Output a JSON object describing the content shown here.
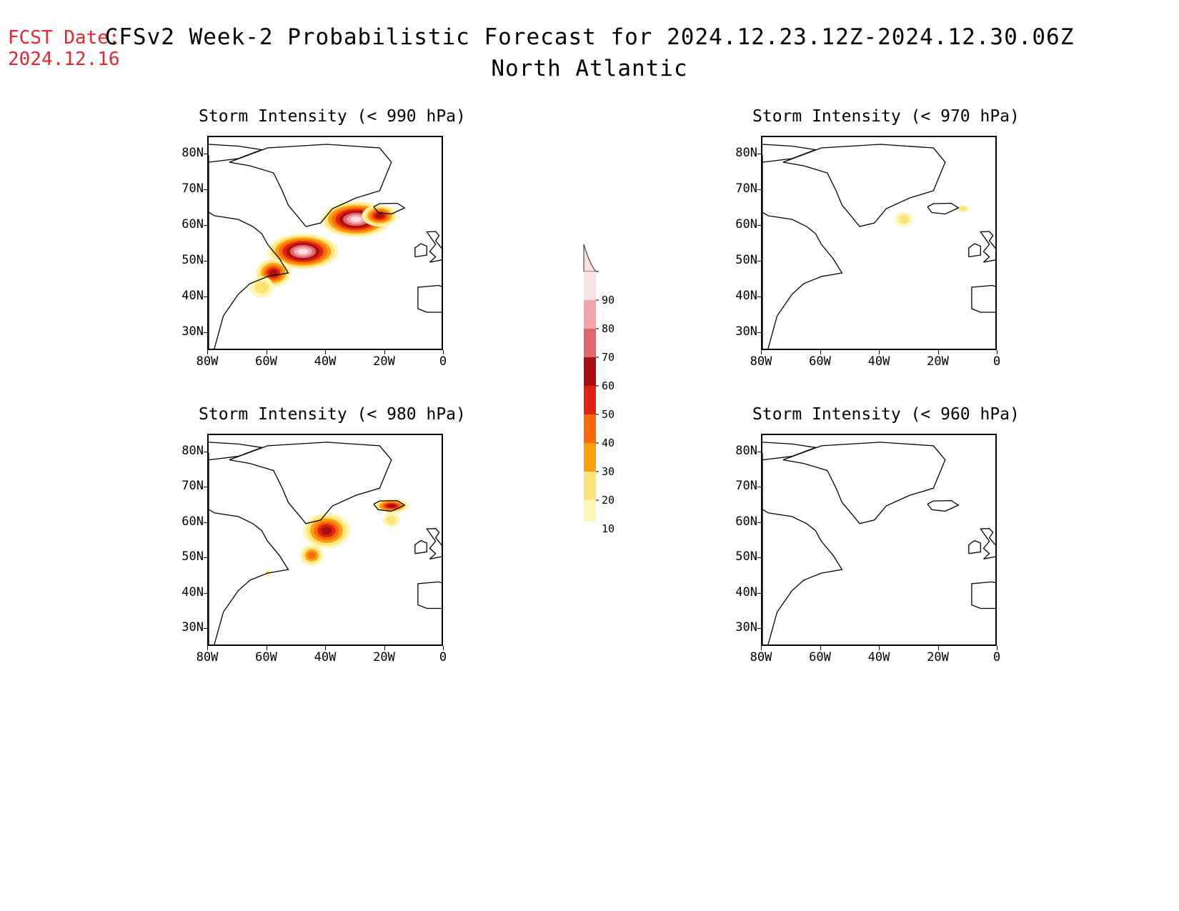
{
  "header": {
    "fcst_label": "FCST Date:",
    "fcst_date": "2024.12.16",
    "title_line1": "CFSv2 Week-2 Probabilistic Forecast for 2024.12.23.12Z-2024.12.30.06Z",
    "title_line2": "North Atlantic"
  },
  "axes": {
    "lat_labels": [
      "80N",
      "70N",
      "60N",
      "50N",
      "40N",
      "30N"
    ],
    "lon_labels": [
      "80W",
      "60W",
      "40W",
      "20W",
      "0"
    ]
  },
  "panels": [
    {
      "id": "p990",
      "title": "Storm Intensity (< 990 hPa)",
      "blobs": [
        {
          "lon": -30,
          "lat": 62,
          "rx": 12,
          "ry": 5,
          "level": 90
        },
        {
          "lon": -22,
          "lat": 63,
          "rx": 6,
          "ry": 3,
          "level": 60
        },
        {
          "lon": -48,
          "lat": 53,
          "rx": 12,
          "ry": 5,
          "level": 90
        },
        {
          "lon": -58,
          "lat": 47,
          "rx": 6,
          "ry": 4,
          "level": 60
        },
        {
          "lon": -62,
          "lat": 43,
          "rx": 4,
          "ry": 3,
          "level": 20
        }
      ]
    },
    {
      "id": "p970",
      "title": "Storm Intensity (< 970 hPa)",
      "blobs": [
        {
          "lon": -32,
          "lat": 62,
          "rx": 3,
          "ry": 2,
          "level": 20
        },
        {
          "lon": -12,
          "lat": 65,
          "rx": 2,
          "ry": 1,
          "level": 20
        }
      ]
    },
    {
      "id": "p980",
      "title": "Storm Intensity (< 980 hPa)",
      "blobs": [
        {
          "lon": -40,
          "lat": 58,
          "rx": 8,
          "ry": 5,
          "level": 60
        },
        {
          "lon": -45,
          "lat": 51,
          "rx": 4,
          "ry": 3,
          "level": 40
        },
        {
          "lon": -18,
          "lat": 65,
          "rx": 6,
          "ry": 2,
          "level": 60
        },
        {
          "lon": -18,
          "lat": 61,
          "rx": 3,
          "ry": 2,
          "level": 20
        },
        {
          "lon": -60,
          "lat": 46,
          "rx": 1,
          "ry": 1,
          "level": 20
        }
      ]
    },
    {
      "id": "p960",
      "title": "Storm Intensity (< 960 hPa)",
      "blobs": []
    }
  ],
  "colorbar": {
    "levels": [
      "90",
      "80",
      "70",
      "60",
      "50",
      "40",
      "30",
      "20",
      "10"
    ],
    "colors": [
      "#fbe0e2",
      "#f2a4aa",
      "#e0676b",
      "#a80f10",
      "#de2410",
      "#fb6a0a",
      "#fd9e0e",
      "#fee27a",
      "#fff6b5"
    ]
  }
}
